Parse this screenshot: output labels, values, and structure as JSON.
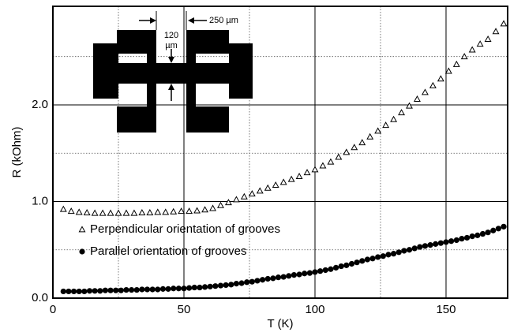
{
  "chart_data": {
    "type": "scatter",
    "xlabel": "T (K)",
    "ylabel": "R (kOhm)",
    "xlim": [
      0,
      173.5
    ],
    "ylim": [
      0,
      3.02
    ],
    "xticks": [
      0,
      50,
      100,
      150
    ],
    "yticks": [
      {
        "value": 0,
        "label": "0.0"
      },
      {
        "value": 1,
        "label": "1.0"
      },
      {
        "value": 2,
        "label": "2.0"
      }
    ],
    "minor_xgrid": [
      25,
      75,
      125
    ],
    "minor_ygrid": [
      0.5,
      1.5,
      2.5
    ],
    "grid": true,
    "annotations": [
      "120",
      "µm",
      "250 µm"
    ],
    "series": [
      {
        "name": "Perpendicular orientation of grooves",
        "marker": "open-triangle",
        "color": "#000000",
        "x": [
          4,
          7,
          10,
          13,
          16,
          19,
          22,
          25,
          28,
          31,
          34,
          37,
          40,
          43,
          46,
          49,
          52,
          55,
          58,
          61,
          64,
          67,
          70,
          73,
          76,
          79,
          82,
          85,
          88,
          91,
          94,
          97,
          100,
          103,
          106,
          109,
          112,
          115,
          118,
          121,
          124,
          127,
          130,
          133,
          136,
          139,
          142,
          145,
          148,
          151,
          154,
          157,
          160,
          163,
          166,
          169,
          172
        ],
        "values": [
          0.92,
          0.9,
          0.89,
          0.885,
          0.88,
          0.88,
          0.88,
          0.88,
          0.88,
          0.88,
          0.885,
          0.885,
          0.89,
          0.89,
          0.895,
          0.9,
          0.9,
          0.905,
          0.915,
          0.93,
          0.96,
          0.99,
          1.02,
          1.05,
          1.08,
          1.11,
          1.14,
          1.17,
          1.2,
          1.23,
          1.26,
          1.3,
          1.33,
          1.37,
          1.41,
          1.46,
          1.51,
          1.56,
          1.61,
          1.67,
          1.73,
          1.79,
          1.85,
          1.92,
          1.99,
          2.06,
          2.13,
          2.2,
          2.27,
          2.35,
          2.42,
          2.5,
          2.57,
          2.63,
          2.68,
          2.76,
          2.84
        ]
      },
      {
        "name": "Parallel orientation of grooves",
        "marker": "filled-circle",
        "color": "#000000",
        "x": [
          4,
          6,
          8,
          10,
          12,
          14,
          16,
          18,
          20,
          22,
          24,
          26,
          28,
          30,
          32,
          34,
          36,
          38,
          40,
          42,
          44,
          46,
          48,
          50,
          52,
          54,
          56,
          58,
          60,
          62,
          64,
          66,
          68,
          70,
          72,
          74,
          76,
          78,
          80,
          82,
          84,
          86,
          88,
          90,
          92,
          94,
          96,
          98,
          100,
          102,
          104,
          106,
          108,
          110,
          112,
          114,
          116,
          118,
          120,
          122,
          124,
          126,
          128,
          130,
          132,
          134,
          136,
          138,
          140,
          142,
          144,
          146,
          148,
          150,
          152,
          154,
          156,
          158,
          160,
          162,
          164,
          166,
          168,
          170,
          172
        ],
        "values": [
          0.07,
          0.07,
          0.07,
          0.07,
          0.07,
          0.075,
          0.075,
          0.075,
          0.08,
          0.08,
          0.08,
          0.08,
          0.085,
          0.085,
          0.085,
          0.09,
          0.09,
          0.09,
          0.09,
          0.095,
          0.095,
          0.1,
          0.1,
          0.1,
          0.105,
          0.11,
          0.11,
          0.115,
          0.12,
          0.125,
          0.13,
          0.135,
          0.14,
          0.15,
          0.155,
          0.165,
          0.17,
          0.18,
          0.19,
          0.2,
          0.205,
          0.215,
          0.22,
          0.23,
          0.24,
          0.245,
          0.255,
          0.26,
          0.27,
          0.28,
          0.29,
          0.3,
          0.315,
          0.33,
          0.34,
          0.355,
          0.37,
          0.385,
          0.4,
          0.41,
          0.425,
          0.435,
          0.45,
          0.46,
          0.475,
          0.49,
          0.5,
          0.515,
          0.53,
          0.54,
          0.55,
          0.56,
          0.57,
          0.58,
          0.59,
          0.6,
          0.615,
          0.625,
          0.64,
          0.65,
          0.665,
          0.68,
          0.7,
          0.72,
          0.74
        ]
      }
    ]
  }
}
